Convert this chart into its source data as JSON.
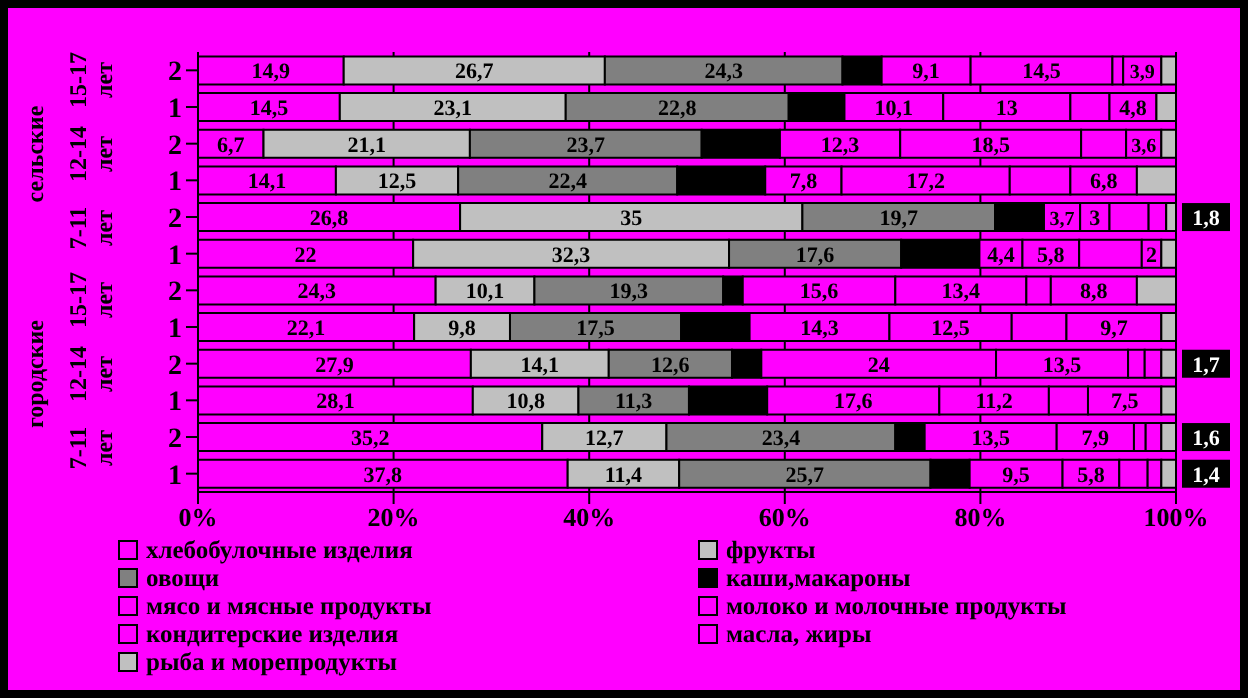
{
  "chart_data": {
    "type": "bar",
    "orientation": "horizontal",
    "stacked": true,
    "categories": [
      "2",
      "1",
      "2",
      "1",
      "2",
      "1",
      "2",
      "1",
      "2",
      "1",
      "2",
      "1"
    ],
    "annotations": [
      "15-17 лет",
      "12-14 лет",
      "7-11 лет",
      "15-17 лет",
      "12-14 лет",
      "7-11 лет",
      "сельские",
      "городские"
    ],
    "series": [
      {
        "name": "хлебобулочные изделия",
        "color": "#ff00ff",
        "values": [
          14.9,
          14.5,
          6.7,
          14.1,
          26.8,
          22,
          24.3,
          22.1,
          27.9,
          28.1,
          35.2,
          37.8
        ],
        "value_labels": [
          "14,9",
          "14,5",
          "6,7",
          "14,1",
          "26,8",
          "22",
          "24,3",
          "22,1",
          "27,9",
          "28,1",
          "35,2",
          "37,8"
        ]
      },
      {
        "name": "фрукты",
        "color": "#c0c0c0",
        "values": [
          26.7,
          23.1,
          21.1,
          12.5,
          35,
          32.3,
          10.1,
          9.8,
          14.1,
          10.8,
          12.7,
          11.4
        ],
        "value_labels": [
          "26,7",
          "23,1",
          "21,1",
          "12,5",
          "35",
          "32,3",
          "10,1",
          "9,8",
          "14,1",
          "10,8",
          "12,7",
          "11,4"
        ]
      },
      {
        "name": "овощи",
        "color": "#808080",
        "values": [
          24.3,
          22.8,
          23.7,
          22.4,
          19.7,
          17.6,
          19.3,
          17.5,
          12.6,
          11.3,
          23.4,
          25.7
        ],
        "value_labels": [
          "24,3",
          "22,8",
          "23,7",
          "22,4",
          "19,7",
          "17,6",
          "19,3",
          "17,5",
          "12,6",
          "11,3",
          "23,4",
          "25,7"
        ]
      },
      {
        "name": "каши,макароны",
        "color": "#000000",
        "values": [
          4,
          5.7,
          8,
          9,
          5,
          8,
          2,
          7,
          3,
          8,
          3,
          4
        ],
        "value_labels": [
          null,
          null,
          null,
          null,
          null,
          null,
          null,
          null,
          null,
          null,
          null,
          null
        ]
      },
      {
        "name": "мясо и мясные продукты",
        "color": "#ff00ff",
        "values": [
          9.1,
          10.1,
          12.3,
          7.8,
          3.7,
          4.4,
          15.6,
          14.3,
          24,
          17.6,
          13.5,
          9.5
        ],
        "value_labels": [
          "9,1",
          "10,1",
          "12,3",
          "7,8",
          "3,7",
          "4,4",
          "15,6",
          "14,3",
          "24",
          "17,6",
          "13,5",
          "9,5"
        ]
      },
      {
        "name": "молоко и молочные продукты",
        "color": "#ff00ff",
        "values": [
          14.5,
          13,
          18.5,
          17.2,
          3,
          5.8,
          13.4,
          12.5,
          13.5,
          11.2,
          7.9,
          5.8
        ],
        "value_labels": [
          "14,5",
          "13",
          "18,5",
          "17,2",
          "3",
          "5,8",
          "13,4",
          "12,5",
          "13,5",
          "11,2",
          "7,9",
          "5,8"
        ]
      },
      {
        "name": "кондитерские изделия",
        "color": "#ff00ff",
        "values": [
          1.1,
          4,
          4.6,
          6.2,
          4,
          6.4,
          2.5,
          5.6,
          1.7,
          4,
          1.2,
          2.9
        ],
        "value_labels": [
          null,
          null,
          null,
          null,
          null,
          null,
          null,
          null,
          null,
          null,
          null,
          null
        ]
      },
      {
        "name": "масла, жиры",
        "color": "#ff00ff",
        "values": [
          3.9,
          4.8,
          3.6,
          6.8,
          1.8,
          2,
          8.8,
          9.7,
          1.7,
          7.5,
          1.6,
          1.4
        ],
        "value_labels": [
          "3,9",
          "4,8",
          "3,6",
          "6,8",
          "1,8",
          "2",
          "8,8",
          "9,7",
          "1,7",
          "7,5",
          "1,6",
          "1,4"
        ]
      },
      {
        "name": "рыба и морепродукты",
        "color": "#c0c0c0",
        "values": [
          1.5,
          2,
          1.5,
          4,
          1,
          1.5,
          4,
          1.5,
          1.5,
          1.5,
          1.5,
          1.5
        ],
        "value_labels": [
          null,
          null,
          null,
          null,
          null,
          null,
          null,
          null,
          null,
          null,
          null,
          null
        ]
      }
    ],
    "xlim": [
      0,
      100
    ],
    "xticks": [
      {
        "value": 0,
        "label": "0%"
      },
      {
        "value": 20,
        "label": "20%"
      },
      {
        "value": 40,
        "label": "40%"
      },
      {
        "value": 60,
        "label": "60%"
      },
      {
        "value": 80,
        "label": "80%"
      },
      {
        "value": 100,
        "label": "100%"
      }
    ],
    "grid": "x",
    "legend": "bottom"
  }
}
